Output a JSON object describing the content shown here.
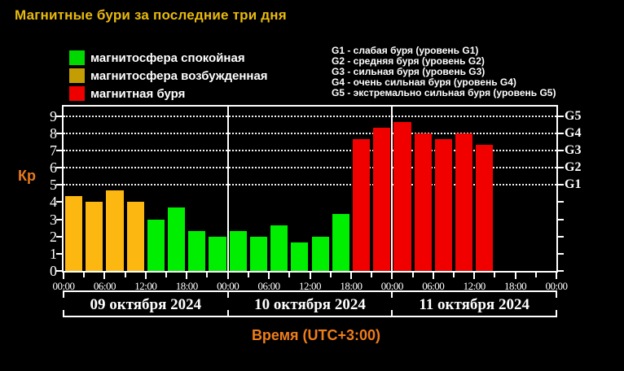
{
  "title": "Магнитные бури за последние три дня",
  "colors": {
    "background": "#000000",
    "title": "#e9ba0e",
    "kp_label": "#e87a1e",
    "xlabel": "#ef7d1a",
    "frame": "#ffffff",
    "legend_quiet": "#00d900",
    "legend_excited": "#c49d04",
    "legend_storm": "#ee0000",
    "bar_quiet": "#00ee00",
    "bar_excited": "#fcb711",
    "bar_storm": "#f10000"
  },
  "legend": {
    "items": [
      {
        "label": "магнитосфера спокойная",
        "color": "#00d900",
        "state": "quiet"
      },
      {
        "label": "магнитосфера возбужденная",
        "color": "#c49d04",
        "state": "excited"
      },
      {
        "label": "магнитная буря",
        "color": "#ee0000",
        "state": "storm"
      }
    ]
  },
  "storm_levels": [
    "G1 - слабая буря (уровень G1)",
    "G2 - средняя буря (уровень G2)",
    "G3 - сильная буря (уровень G3)",
    "G4 - очень сильная буря (уровень G4)",
    "G5 - экстремально сильная буря (уровень G5)"
  ],
  "chart_data": {
    "type": "bar",
    "title": "Магнитные бури за последние три дня",
    "ylabel": "Кр",
    "xlabel": "Время (UTC+3:00)",
    "ylim": [
      0,
      9.55
    ],
    "yticks": [
      0,
      1,
      2,
      3,
      4,
      5,
      6,
      7,
      8,
      9
    ],
    "gridlines": [
      5,
      6,
      7,
      8,
      9
    ],
    "grid_style": "dotted",
    "legend_position": "top",
    "right_axis_labels": [
      {
        "label": "G5",
        "value": 9
      },
      {
        "label": "G4",
        "value": 8
      },
      {
        "label": "G3",
        "value": 7
      },
      {
        "label": "G2",
        "value": 6
      },
      {
        "label": "G1",
        "value": 5
      }
    ],
    "time_tick_labels": [
      "00:00",
      "06:00",
      "12:00",
      "18:00",
      "00:00",
      "06:00",
      "12:00",
      "18:00",
      "00:00",
      "06:00",
      "12:00",
      "18:00",
      "00:00"
    ],
    "hours_per_bar": 3,
    "bar_colors": {
      "quiet": "#00ee00",
      "excited": "#fcb711",
      "storm": "#f10000"
    },
    "days": [
      {
        "date": "09 октября 2024",
        "bars": [
          {
            "kp": 4.33,
            "state": "excited"
          },
          {
            "kp": 4.0,
            "state": "excited"
          },
          {
            "kp": 4.67,
            "state": "excited"
          },
          {
            "kp": 4.0,
            "state": "excited"
          },
          {
            "kp": 3.0,
            "state": "quiet"
          },
          {
            "kp": 3.67,
            "state": "quiet"
          },
          {
            "kp": 2.33,
            "state": "quiet"
          },
          {
            "kp": 2.0,
            "state": "quiet"
          }
        ]
      },
      {
        "date": "10 октября 2024",
        "bars": [
          {
            "kp": 2.33,
            "state": "quiet"
          },
          {
            "kp": 2.0,
            "state": "quiet"
          },
          {
            "kp": 2.67,
            "state": "quiet"
          },
          {
            "kp": 1.67,
            "state": "quiet"
          },
          {
            "kp": 2.0,
            "state": "quiet"
          },
          {
            "kp": 3.33,
            "state": "quiet"
          },
          {
            "kp": 7.67,
            "state": "storm"
          },
          {
            "kp": 8.33,
            "state": "storm"
          }
        ]
      },
      {
        "date": "11 октября 2024",
        "bars": [
          {
            "kp": 8.67,
            "state": "storm"
          },
          {
            "kp": 8.0,
            "state": "storm"
          },
          {
            "kp": 7.67,
            "state": "storm"
          },
          {
            "kp": 8.0,
            "state": "storm"
          },
          {
            "kp": 7.33,
            "state": "storm"
          }
        ]
      }
    ]
  }
}
